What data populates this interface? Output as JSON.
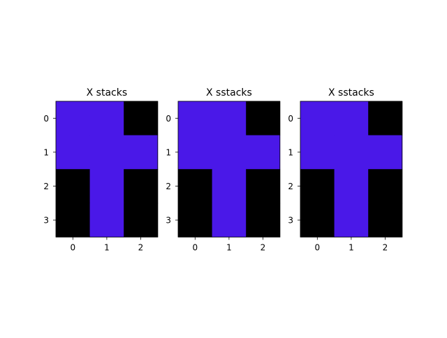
{
  "chart_data": [
    {
      "type": "heatmap",
      "title": "X stacks",
      "x": [
        0,
        1,
        2
      ],
      "y": [
        0,
        1,
        2,
        3
      ],
      "values": [
        [
          1,
          1,
          0
        ],
        [
          1,
          1,
          1
        ],
        [
          0,
          1,
          0
        ],
        [
          0,
          1,
          0
        ]
      ],
      "colors": {
        "0": "#000000",
        "1": "#4a18e8"
      },
      "xlim": [
        -0.5,
        2.5
      ],
      "ylim": [
        3.5,
        -0.5
      ],
      "grid": false
    },
    {
      "type": "heatmap",
      "title": "X sstacks",
      "x": [
        0,
        1,
        2
      ],
      "y": [
        0,
        1,
        2,
        3
      ],
      "values": [
        [
          1,
          1,
          0
        ],
        [
          1,
          1,
          1
        ],
        [
          0,
          1,
          0
        ],
        [
          0,
          1,
          0
        ]
      ],
      "colors": {
        "0": "#000000",
        "1": "#4a18e8"
      },
      "xlim": [
        -0.5,
        2.5
      ],
      "ylim": [
        3.5,
        -0.5
      ],
      "grid": false
    },
    {
      "type": "heatmap",
      "title": "X sstacks",
      "x": [
        0,
        1,
        2
      ],
      "y": [
        0,
        1,
        2,
        3
      ],
      "values": [
        [
          1,
          1,
          0
        ],
        [
          1,
          1,
          1
        ],
        [
          0,
          1,
          0
        ],
        [
          0,
          1,
          0
        ]
      ],
      "colors": {
        "0": "#000000",
        "1": "#4a18e8"
      },
      "xlim": [
        -0.5,
        2.5
      ],
      "ylim": [
        3.5,
        -0.5
      ],
      "grid": false
    }
  ]
}
